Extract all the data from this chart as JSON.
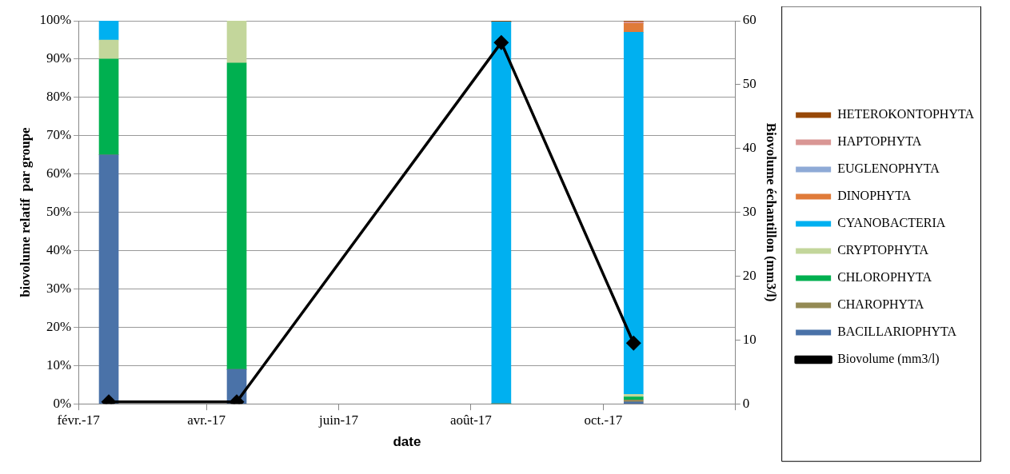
{
  "chart_data": {
    "type": "bar",
    "stacked": true,
    "xlabel": "date",
    "ylabel": "biovolume relatif  par groupe",
    "y2label": "Biovolume échantillon (mm3/l)",
    "x": [
      "2017-02-15",
      "2017-04-15",
      "2017-08-15",
      "2017-10-15"
    ],
    "xlim": [
      "2017-02-01",
      "2017-12-01"
    ],
    "xticks": [
      {
        "value": "2017-02-01",
        "label": "févr.-17"
      },
      {
        "value": "2017-04-01",
        "label": "avr.-17"
      },
      {
        "value": "2017-06-01",
        "label": "juin-17"
      },
      {
        "value": "2017-08-01",
        "label": "août-17"
      },
      {
        "value": "2017-10-01",
        "label": "oct.-17"
      },
      {
        "value": "2017-12-01",
        "label": null
      }
    ],
    "ylim": [
      0,
      100
    ],
    "yticks": [
      {
        "value": 0,
        "label": "0%"
      },
      {
        "value": 10,
        "label": "10%"
      },
      {
        "value": 20,
        "label": "20%"
      },
      {
        "value": 30,
        "label": "30%"
      },
      {
        "value": 40,
        "label": "40%"
      },
      {
        "value": 50,
        "label": "50%"
      },
      {
        "value": 60,
        "label": "60%"
      },
      {
        "value": 70,
        "label": "70%"
      },
      {
        "value": 80,
        "label": "80%"
      },
      {
        "value": 90,
        "label": "90%"
      },
      {
        "value": 100,
        "label": "100%"
      }
    ],
    "y2lim": [
      0,
      60
    ],
    "y2ticks": [
      0,
      10,
      20,
      30,
      40,
      50,
      60
    ],
    "grid": "y",
    "legend": "right",
    "series": [
      {
        "name": "BACILLARIOPHYTA",
        "color": "#4a72a8",
        "values": [
          65,
          9,
          0,
          0.5
        ]
      },
      {
        "name": "CHAROPHYTA",
        "color": "#948a54",
        "values": [
          0,
          0,
          0,
          0.5
        ]
      },
      {
        "name": "CHLOROPHYTA",
        "color": "#00b050",
        "values": [
          25,
          80,
          0,
          0.8
        ]
      },
      {
        "name": "CRYPTOPHYTA",
        "color": "#c3d69b",
        "values": [
          5,
          11,
          0,
          0.7
        ]
      },
      {
        "name": "CYANOBACTERIA",
        "color": "#00b0f0",
        "values": [
          5,
          0,
          99.7,
          94.5
        ]
      },
      {
        "name": "DINOPHYTA",
        "color": "#e07b39",
        "values": [
          0,
          0,
          0,
          2.3
        ]
      },
      {
        "name": "EUGLENOPHYTA",
        "color": "#8eaad6",
        "values": [
          0,
          0,
          0,
          0
        ]
      },
      {
        "name": "HAPTOPHYTA",
        "color": "#d99694",
        "values": [
          0,
          0,
          0,
          0.4
        ]
      },
      {
        "name": "HETEROKONTOPHYTA",
        "color": "#984807",
        "values": [
          0,
          0,
          0.3,
          0.3
        ]
      },
      {
        "name": "Biovolume (mm3/l)",
        "type": "line",
        "axis": "y2",
        "color": "#000000",
        "marker": "diamond",
        "values": [
          0.3,
          0.3,
          56.6,
          9.5
        ]
      }
    ]
  }
}
